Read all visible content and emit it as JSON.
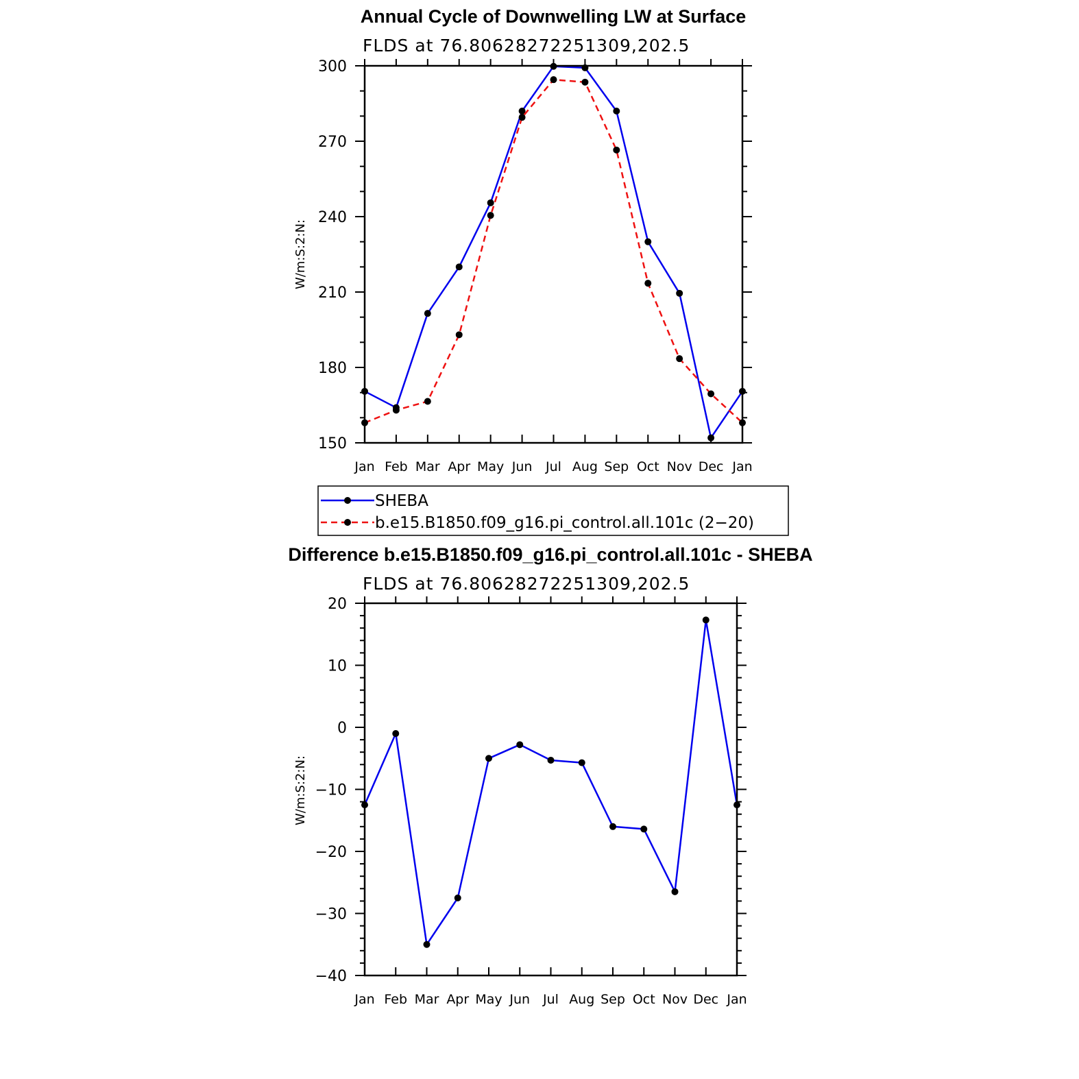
{
  "chart_data": [
    {
      "type": "line",
      "title": "Annual Cycle of Downwelling LW at Surface",
      "subtitle": "FLDS at 76.80628272251309,202.5",
      "ylabel": "W/m:S:2:N:",
      "xlabel": "",
      "categories": [
        "Jan",
        "Feb",
        "Mar",
        "Apr",
        "May",
        "Jun",
        "Jul",
        "Aug",
        "Sep",
        "Oct",
        "Nov",
        "Dec",
        "Jan"
      ],
      "ylim": [
        150,
        300
      ],
      "yticks": [
        150,
        180,
        210,
        240,
        270,
        300
      ],
      "series": [
        {
          "name": "SHEBA",
          "color": "#0000ee",
          "style": "solid",
          "values": [
            170.5,
            164.0,
            201.5,
            220.0,
            245.5,
            282.0,
            299.8,
            299.2,
            282.0,
            230.0,
            209.5,
            152.0,
            170.5
          ]
        },
        {
          "name": "b.e15.B1850.f09_g16.pi_control.all.101c (2−20)",
          "color": "#ee1111",
          "style": "dashed",
          "values": [
            158.0,
            163.0,
            166.5,
            193.0,
            240.5,
            279.5,
            294.5,
            293.5,
            266.5,
            213.5,
            183.5,
            169.5,
            158.0
          ]
        }
      ],
      "legend": "below"
    },
    {
      "type": "line",
      "title": "Difference b.e15.B1850.f09_g16.pi_control.all.101c - SHEBA",
      "subtitle": "FLDS at 76.80628272251309,202.5",
      "ylabel": "W/m:S:2:N:",
      "xlabel": "",
      "categories": [
        "Jan",
        "Feb",
        "Mar",
        "Apr",
        "May",
        "Jun",
        "Jul",
        "Aug",
        "Sep",
        "Oct",
        "Nov",
        "Dec",
        "Jan"
      ],
      "ylim": [
        -40,
        20
      ],
      "yticks": [
        -40,
        -30,
        -20,
        -10,
        0,
        10,
        20
      ],
      "ytick_labels": [
        "−40",
        "−30",
        "−20",
        "−10",
        "0",
        "10",
        "20"
      ],
      "series": [
        {
          "color": "#0000ee",
          "style": "solid",
          "values": [
            -12.5,
            -1.0,
            -35.0,
            -27.5,
            -5.0,
            -2.8,
            -5.3,
            -5.7,
            -16.0,
            -16.4,
            -26.5,
            17.3,
            -12.5
          ]
        }
      ]
    }
  ]
}
